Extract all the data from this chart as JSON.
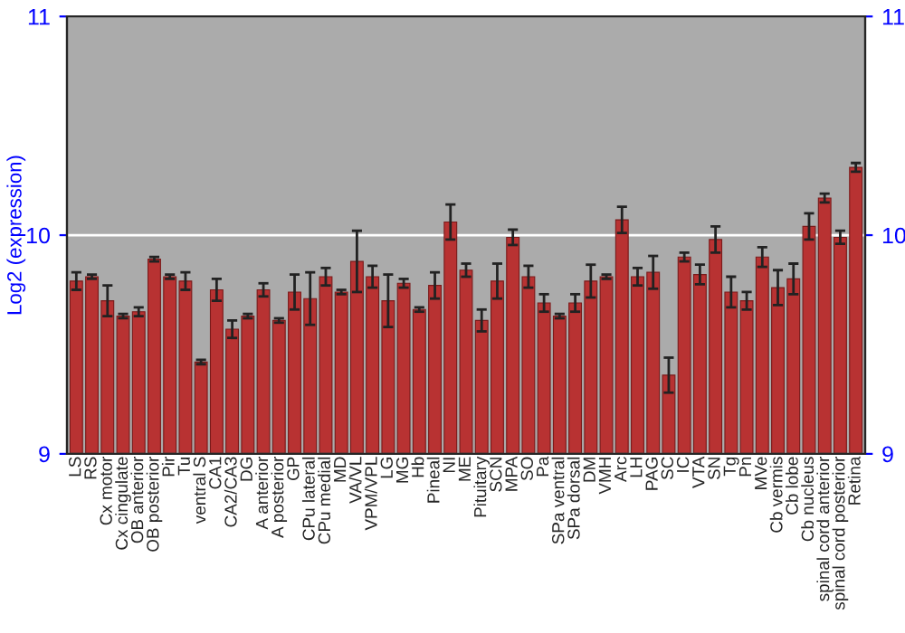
{
  "chart_data": {
    "type": "bar",
    "ylabel": "Log2 (expression)",
    "categories": [
      "LS",
      "RS",
      "Cx motor",
      "Cx cingulate",
      "OB anterior",
      "OB posterior",
      "Pir",
      "Tu",
      "ventral S",
      "CA1",
      "CA2/CA3",
      "DG",
      "A anterior",
      "A posterior",
      "GP",
      "CPu lateral",
      "CPu medial",
      "MD",
      "VA/VL",
      "VPM/VPL",
      "LG",
      "MG",
      "Hb",
      "Pineal",
      "NI",
      "ME",
      "Pituitary",
      "SCN",
      "MPA",
      "SO",
      "Pa",
      "SPa ventral",
      "SPa dorsal",
      "DM",
      "VMH",
      "Arc",
      "LH",
      "PAG",
      "SC",
      "IC",
      "VTA",
      "SN",
      "Tg",
      "Pn",
      "MVe",
      "Cb vermis",
      "Cb lobe",
      "Cb nucleus",
      "spinal cord anterior",
      "spinal cord posterior",
      "Retina"
    ],
    "values": [
      9.79,
      9.81,
      9.7,
      9.63,
      9.65,
      9.89,
      9.81,
      9.79,
      9.42,
      9.75,
      9.57,
      9.63,
      9.75,
      9.61,
      9.74,
      9.71,
      9.81,
      9.74,
      9.88,
      9.81,
      9.7,
      9.78,
      9.66,
      9.77,
      10.06,
      9.84,
      9.61,
      9.79,
      9.99,
      9.81,
      9.69,
      9.63,
      9.69,
      9.79,
      9.81,
      10.07,
      9.81,
      9.83,
      9.36,
      9.9,
      9.82,
      9.98,
      9.74,
      9.7,
      9.9,
      9.76,
      9.8,
      10.04,
      10.17,
      9.99,
      10.31
    ],
    "errors": [
      0.04,
      0.01,
      0.07,
      0.01,
      0.02,
      0.01,
      0.01,
      0.04,
      0.01,
      0.05,
      0.04,
      0.01,
      0.03,
      0.01,
      0.08,
      0.12,
      0.04,
      0.01,
      0.14,
      0.05,
      0.12,
      0.02,
      0.01,
      0.06,
      0.08,
      0.03,
      0.05,
      0.08,
      0.035,
      0.05,
      0.04,
      0.01,
      0.04,
      0.075,
      0.01,
      0.06,
      0.04,
      0.075,
      0.08,
      0.02,
      0.045,
      0.06,
      0.07,
      0.04,
      0.045,
      0.08,
      0.07,
      0.06,
      0.02,
      0.03,
      0.02
    ],
    "color": "#b83232",
    "ylim": [
      9,
      11
    ],
    "yticks": [
      9,
      10,
      11
    ],
    "y2lim": [
      9,
      11
    ],
    "y2ticks": [
      9,
      10,
      11
    ],
    "grid": "y"
  }
}
